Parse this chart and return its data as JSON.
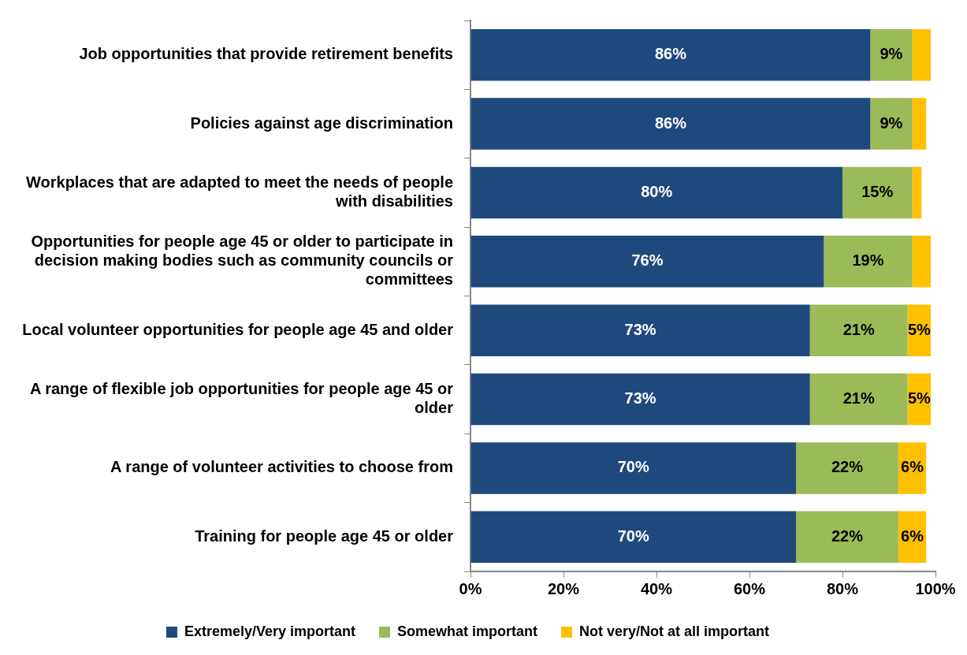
{
  "chart_data": {
    "type": "bar",
    "orientation": "horizontal",
    "stacked": true,
    "grid": false,
    "legend": "bottom",
    "categories": [
      "Job opportunities that provide retirement benefits",
      "Policies against age discrimination",
      "Workplaces that are adapted to meet the needs of people with disabilities",
      "Opportunities for people age 45 or older to participate in decision making bodies such as community councils or committees",
      "Local volunteer opportunities for people age 45 and older",
      "A range of flexible job opportunities for people age 45 or older",
      "A range of volunteer activities to choose from",
      "Training for people age 45 or older"
    ],
    "xlim": [
      0,
      100
    ],
    "xticks": [
      {
        "value": 0,
        "label": "0%"
      },
      {
        "value": 20,
        "label": "20%"
      },
      {
        "value": 40,
        "label": "40%"
      },
      {
        "value": 60,
        "label": "60%"
      },
      {
        "value": 80,
        "label": "80%"
      },
      {
        "value": 100,
        "label": "100%"
      }
    ],
    "series": [
      {
        "name": "Extremely/Very important",
        "color": "#1f497d",
        "values": [
          86,
          86,
          80,
          76,
          73,
          73,
          70,
          70
        ],
        "value_labels": [
          "86%",
          "86%",
          "80%",
          "76%",
          "73%",
          "73%",
          "70%",
          "70%"
        ]
      },
      {
        "name": "Somewhat important",
        "color": "#9bbb59",
        "values": [
          9,
          9,
          15,
          19,
          21,
          21,
          22,
          22
        ],
        "value_labels": [
          "9%",
          "9%",
          "15%",
          "19%",
          "21%",
          "21%",
          "22%",
          "22%"
        ]
      },
      {
        "name": "Not very/Not at all important",
        "color": "#ffc000",
        "values": [
          4,
          3,
          2,
          4,
          5,
          5,
          6,
          6
        ],
        "value_labels": [
          null,
          null,
          null,
          null,
          "5%",
          "5%",
          "6%",
          "6%"
        ]
      }
    ]
  }
}
